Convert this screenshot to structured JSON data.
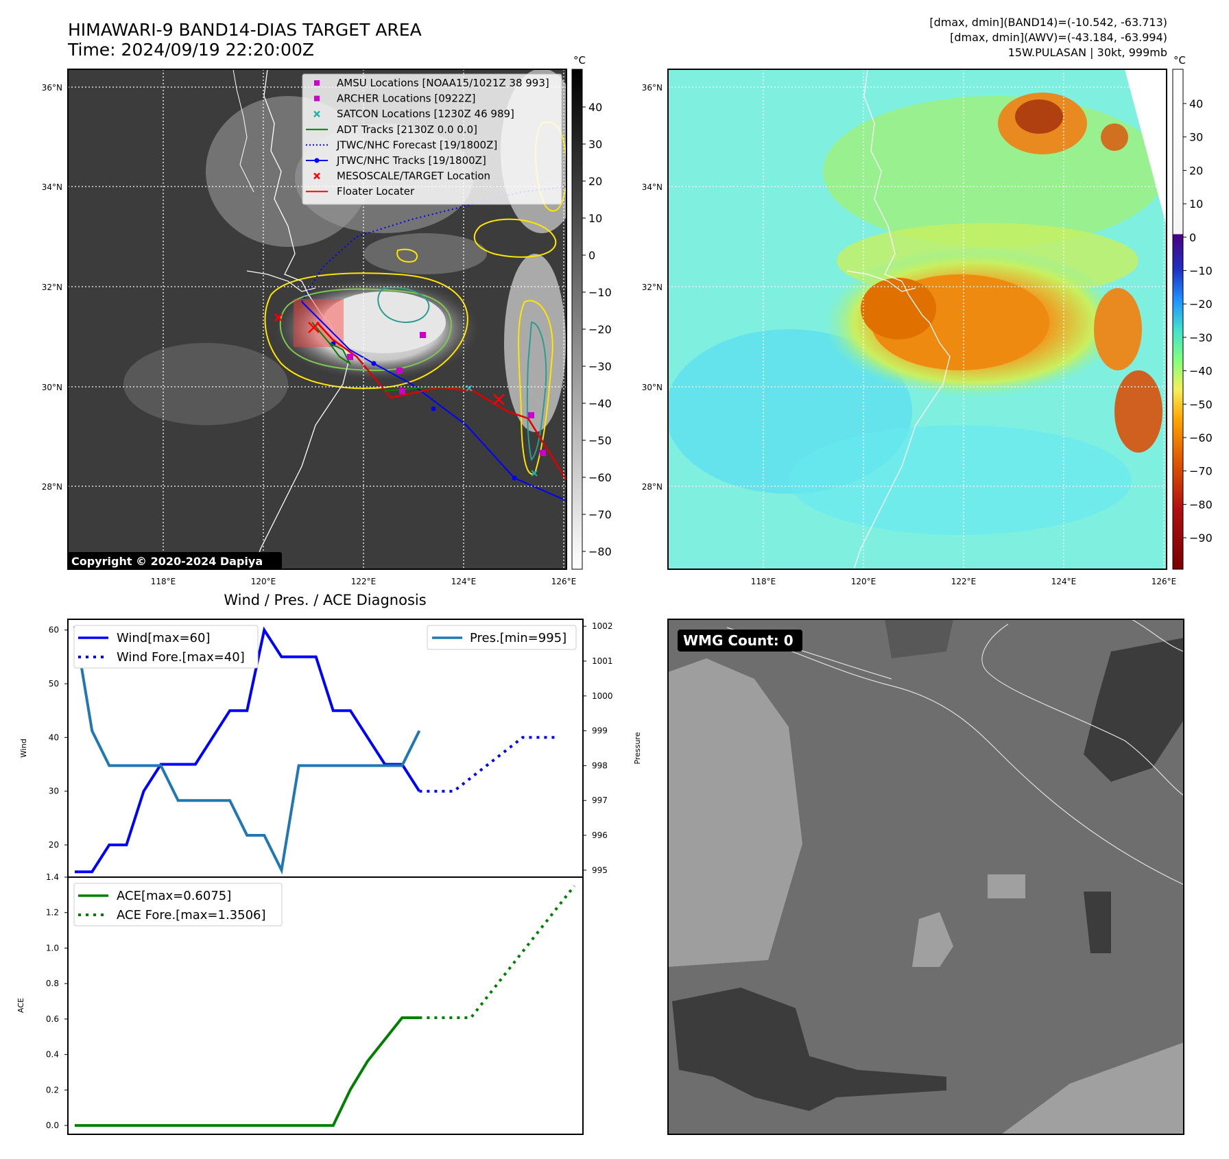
{
  "header": {
    "title": "HIMAWARI-9 BAND14-DIAS TARGET AREA",
    "time": "Time: 2024/09/19 22:20:00Z",
    "dmax_band14": "[dmax, dmin](BAND14)=(-10.542, -63.713)",
    "dmax_awv": "[dmax, dmin](AWV)=(-43.184, -63.994)",
    "storm": "15W.PULASAN | 30kt, 999mb"
  },
  "copyright": "Copyright © 2020-2024 Dapiya",
  "wmg_count": "WMG Count: 0",
  "map": {
    "lat_labels": [
      "36°N",
      "34°N",
      "32°N",
      "30°N",
      "28°N"
    ],
    "lon_labels": [
      "118°E",
      "120°E",
      "122°E",
      "124°E",
      "126°E"
    ],
    "legend": [
      {
        "label": "AMSU Locations [NOAA15/1021Z 38 993]",
        "symbol": "square",
        "color": "#cc00cc"
      },
      {
        "label": "ARCHER Locations [0922Z]",
        "symbol": "square",
        "color": "#cc00cc"
      },
      {
        "label": "SATCON Locations [1230Z 46 989]",
        "symbol": "x",
        "color": "#20b2aa"
      },
      {
        "label": "ADT Tracks [2130Z 0.0 0.0]",
        "symbol": "line",
        "color": "#008000"
      },
      {
        "label": "JTWC/NHC Forecast [19/1800Z]",
        "symbol": "dotted",
        "color": "#0000ff"
      },
      {
        "label": "JTWC/NHC Tracks [19/1800Z]",
        "symbol": "line-dot",
        "color": "#0000ff"
      },
      {
        "label": "MESOSCALE/TARGET Location",
        "symbol": "x",
        "color": "#ff0000"
      },
      {
        "label": "Floater Locater",
        "symbol": "line",
        "color": "#ff0000"
      }
    ],
    "colorbar_gray": {
      "unit": "°C",
      "ticks": [
        "40",
        "30",
        "20",
        "10",
        "0",
        "−10",
        "−20",
        "−30",
        "−40",
        "−50",
        "−60",
        "−70",
        "−80"
      ]
    },
    "colorbar_color": {
      "unit": "°C",
      "ticks": [
        "40",
        "30",
        "20",
        "10",
        "0",
        "−10",
        "−20",
        "−30",
        "−40",
        "−50",
        "−60",
        "−70",
        "−80",
        "−90"
      ]
    }
  },
  "diagnosis_title": "Wind / Pres. / ACE Diagnosis",
  "chart_data": [
    {
      "type": "line",
      "title": "Wind / Pres. / ACE Diagnosis",
      "ylabel": "Wind",
      "y2label": "Pressure",
      "ylim": [
        14,
        62
      ],
      "y2lim": [
        994.8,
        1002.2
      ],
      "xlim": [
        -0.4,
        29.5
      ],
      "yticks": [
        "20",
        "30",
        "40",
        "50",
        "60"
      ],
      "y2ticks": [
        "995",
        "996",
        "997",
        "998",
        "999",
        "1000",
        "1001",
        "1002"
      ],
      "series": [
        {
          "name": "Wind[max=60]",
          "color": "#0000ff",
          "style": "solid",
          "x": [
            0,
            1,
            2,
            3,
            4,
            5,
            6,
            7,
            8,
            9,
            10,
            11,
            12,
            13,
            14,
            15,
            16,
            17,
            18,
            19,
            20
          ],
          "values": [
            15,
            15,
            20,
            20,
            30,
            35,
            35,
            35,
            40,
            45,
            45,
            60,
            55,
            55,
            55,
            45,
            45,
            40,
            35,
            35,
            30
          ]
        },
        {
          "name": "Wind Fore.[max=40]",
          "color": "#0000ff",
          "style": "dotted",
          "x": [
            20,
            22,
            24,
            26,
            27,
            28
          ],
          "values": [
            30,
            30,
            35,
            40,
            40,
            40
          ]
        },
        {
          "name": "Pres.[min=995]",
          "color": "#1f77b4",
          "style": "solid",
          "axis": "right",
          "x": [
            0,
            1,
            2,
            3,
            4,
            5,
            6,
            7,
            8,
            9,
            10,
            11,
            12,
            13,
            14,
            15,
            16,
            17,
            18,
            19,
            20
          ],
          "values": [
            1002,
            999,
            998,
            998,
            998,
            998,
            997,
            997,
            997,
            997,
            996,
            996,
            995,
            998,
            998,
            998,
            998,
            998,
            998,
            998,
            999
          ]
        }
      ]
    },
    {
      "type": "line",
      "ylabel": "ACE",
      "ylim": [
        -0.05,
        1.4
      ],
      "xlim": [
        -0.4,
        29.5
      ],
      "yticks": [
        "0.0",
        "0.2",
        "0.4",
        "0.6",
        "0.8",
        "1.0",
        "1.2",
        "1.4"
      ],
      "series": [
        {
          "name": "ACE[max=0.6075]",
          "color": "#008000",
          "style": "solid",
          "x": [
            0,
            1,
            2,
            3,
            4,
            5,
            6,
            7,
            8,
            9,
            10,
            11,
            12,
            13,
            14,
            15,
            16,
            17,
            18,
            19,
            20
          ],
          "values": [
            0,
            0,
            0,
            0,
            0,
            0,
            0,
            0,
            0,
            0,
            0,
            0,
            0,
            0,
            0,
            0,
            0.2025,
            0.3625,
            0.485,
            0.6075,
            0.6075
          ]
        },
        {
          "name": "ACE Fore.[max=1.3506]",
          "color": "#008000",
          "style": "dotted",
          "x": [
            20,
            23,
            26,
            29
          ],
          "values": [
            0.6075,
            0.6075,
            0.98,
            1.3506
          ]
        }
      ]
    }
  ]
}
